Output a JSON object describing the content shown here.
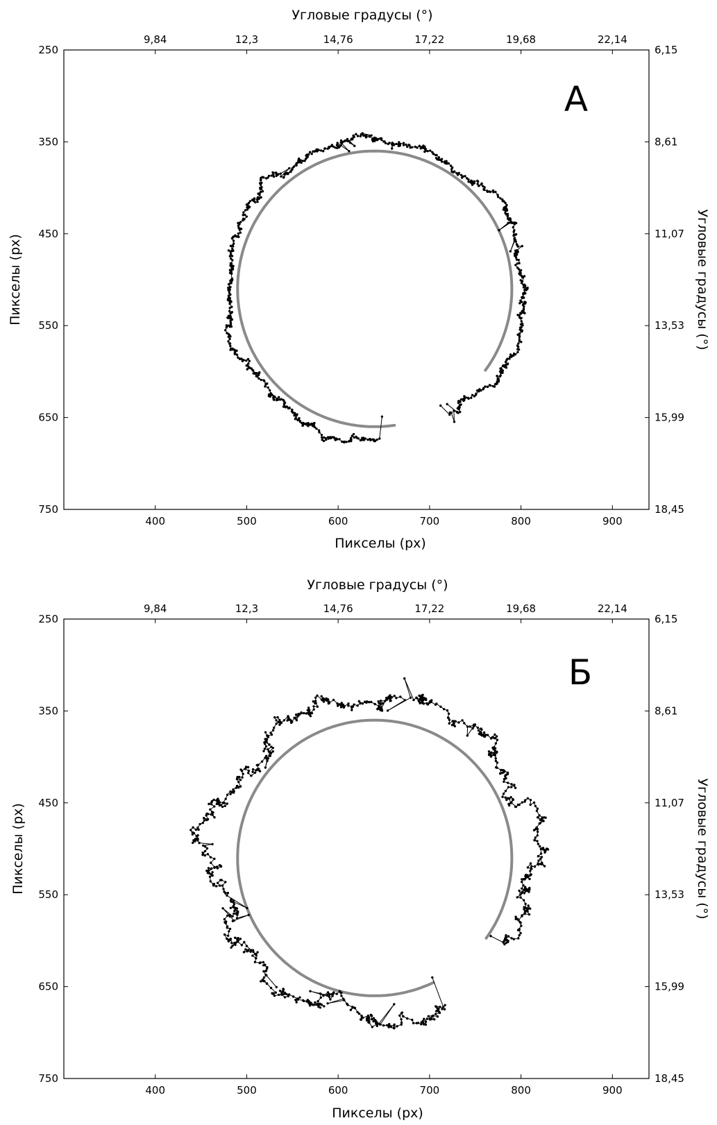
{
  "chart_data": [
    {
      "type": "scatter",
      "panel_label": "А",
      "xlabel": "Пикселы (px)",
      "ylabel": "Пикселы (px)",
      "x2label": "Угловые градусы (°)",
      "y2label": "Угловые градусы (°)",
      "xlim": [
        300,
        940
      ],
      "ylim": [
        750,
        250
      ],
      "y_inverted": true,
      "x_ticks": [
        400,
        500,
        600,
        700,
        800,
        900
      ],
      "y_ticks": [
        250,
        350,
        450,
        550,
        650,
        750
      ],
      "x2_ticks": [
        "9,84",
        "12,3",
        "14,76",
        "17,22",
        "19,68",
        "22,14"
      ],
      "y2_ticks": [
        "6,15",
        "8,61",
        "11,07",
        "13,53",
        "15,99",
        "18,45"
      ],
      "grid": false,
      "reference_arc": {
        "center": [
          640,
          510
        ],
        "radius": 150,
        "start_point": [
          662,
          661
        ],
        "end_point": [
          763,
          600
        ],
        "direction": "clockwise",
        "color": "#8a8a8a"
      },
      "gaze_track": {
        "seed": 11,
        "start_point": [
          648,
          649
        ],
        "end_point": [
          712,
          637
        ],
        "radius_offset": 13,
        "noise": 9,
        "points": 900,
        "color": "#000000"
      }
    },
    {
      "type": "scatter",
      "panel_label": "Б",
      "xlabel": "Пикселы (px)",
      "ylabel": "Пикселы (px)",
      "x2label": "Угловые градусы (°)",
      "y2label": "Угловые градусы (°)",
      "xlim": [
        300,
        940
      ],
      "ylim": [
        750,
        250
      ],
      "y_inverted": true,
      "x_ticks": [
        400,
        500,
        600,
        700,
        800,
        900
      ],
      "y_ticks": [
        250,
        350,
        450,
        550,
        650,
        750
      ],
      "x2_ticks": [
        "9,84",
        "12,3",
        "14,76",
        "17,22",
        "19,68",
        "22,14"
      ],
      "y2_ticks": [
        "6,15",
        "8,61",
        "11,07",
        "13,53",
        "15,99",
        "18,45"
      ],
      "grid": false,
      "reference_arc": {
        "center": [
          640,
          510
        ],
        "radius": 150,
        "start_point": [
          705,
          647
        ],
        "end_point": [
          763,
          598
        ],
        "direction": "clockwise",
        "color": "#8a8a8a"
      },
      "gaze_track": {
        "seed": 29,
        "start_point": [
          703,
          640
        ],
        "end_point": [
          767,
          595
        ],
        "radius_offset": 24,
        "noise": 16,
        "points": 900,
        "color": "#000000"
      }
    }
  ]
}
